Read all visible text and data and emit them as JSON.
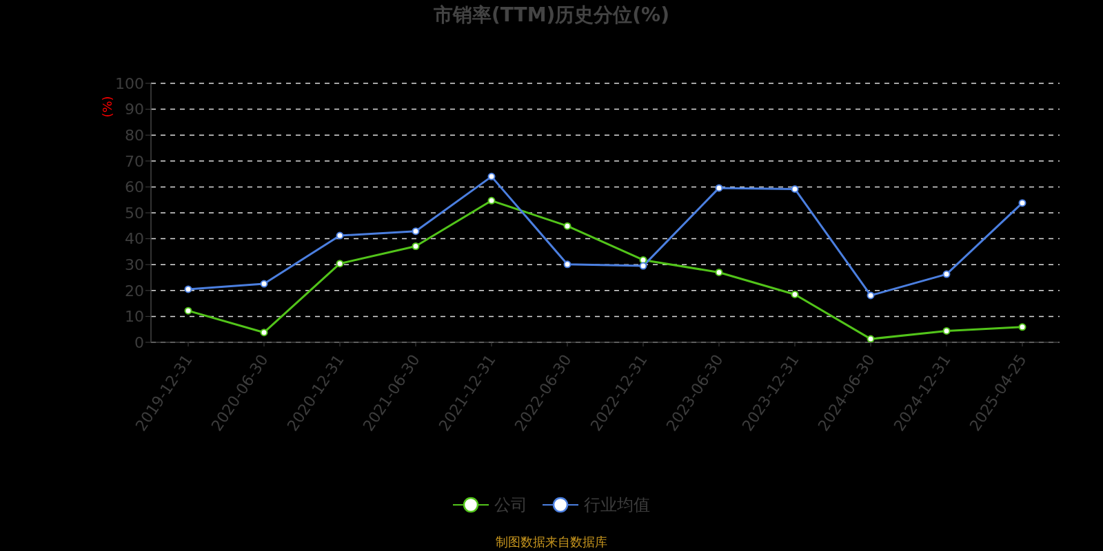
{
  "chart_data": {
    "type": "line",
    "title": "市销率(TTM)历史分位(%)",
    "ylabel": "(%)",
    "categories": [
      "2019-12-31",
      "2020-06-30",
      "2020-12-31",
      "2021-06-30",
      "2021-12-31",
      "2022-06-30",
      "2022-12-31",
      "2023-06-30",
      "2023-12-31",
      "2024-06-30",
      "2024-12-31",
      "2025-04-25"
    ],
    "series": [
      {
        "name": "公司",
        "color": "#52c41a",
        "values": [
          12.2,
          3.8,
          30.4,
          37.1,
          54.7,
          44.9,
          31.8,
          27.0,
          18.5,
          1.3,
          4.4,
          5.9
        ]
      },
      {
        "name": "行业均值",
        "color": "#4b7fe0",
        "values": [
          20.5,
          22.6,
          41.2,
          42.9,
          64.0,
          30.1,
          29.5,
          59.6,
          59.2,
          18.1,
          26.3,
          53.8
        ]
      }
    ],
    "ylim": [
      0,
      100
    ],
    "yticks": [
      0,
      10,
      20,
      30,
      40,
      50,
      60,
      70,
      80,
      90,
      100
    ],
    "grid": "y",
    "legend": "bottom",
    "marker": "circle",
    "line_style": "solid",
    "annotations": [
      "制图数据来自数据库"
    ]
  }
}
